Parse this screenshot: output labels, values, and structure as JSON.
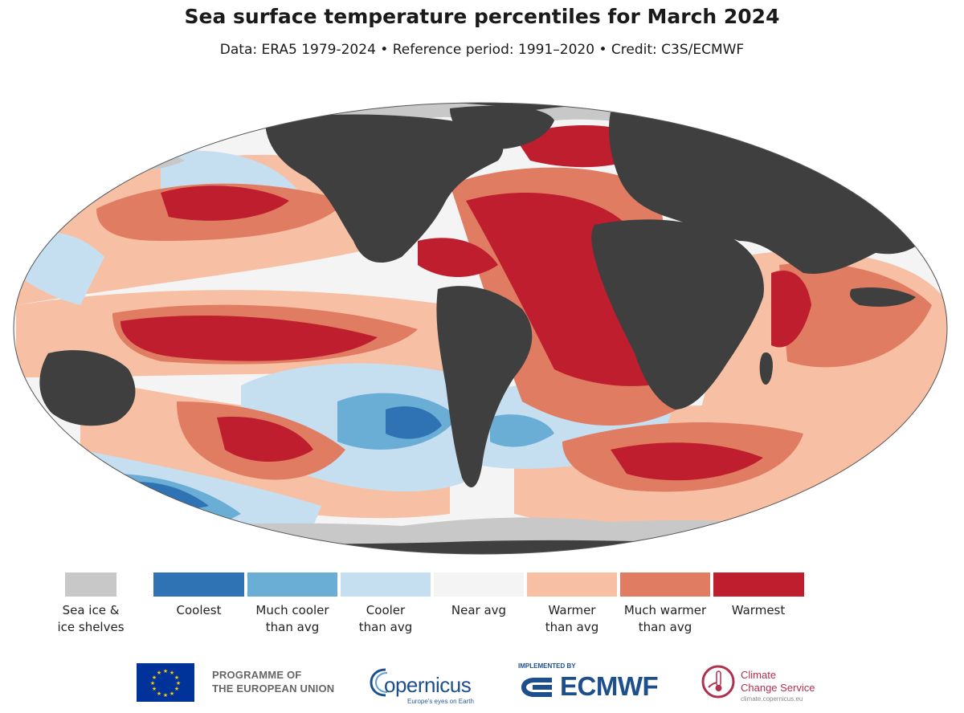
{
  "header": {
    "title": "Sea surface temperature percentiles for March 2024",
    "subtitle": "Data: ERA5 1979-2024 • Reference period: 1991–2020 • Credit: C3S/ECMWF"
  },
  "map": {
    "colors": {
      "land": "#3f3f3f",
      "ice": "#c8c8c8",
      "ocean_background": "#f7f7f7"
    }
  },
  "legend": {
    "ice": {
      "label_line1": "Sea ice &",
      "label_line2": "ice shelves",
      "color": "#c8c8c8"
    },
    "categories": [
      {
        "key": "coolest",
        "line1": "Coolest",
        "line2": "",
        "color": "#2f73b4"
      },
      {
        "key": "much-cooler",
        "line1": "Much cooler",
        "line2": "than avg",
        "color": "#6aaed6"
      },
      {
        "key": "cooler",
        "line1": "Cooler",
        "line2": "than avg",
        "color": "#c6dff0"
      },
      {
        "key": "near-avg",
        "line1": "Near avg",
        "line2": "",
        "color": "#f4f4f4"
      },
      {
        "key": "warmer",
        "line1": "Warmer",
        "line2": "than avg",
        "color": "#f7bfa4"
      },
      {
        "key": "much-warmer",
        "line1": "Much warmer",
        "line2": "than avg",
        "color": "#e07c62"
      },
      {
        "key": "warmest",
        "line1": "Warmest",
        "line2": "",
        "color": "#be1e2d"
      }
    ]
  },
  "footer": {
    "eu": {
      "line1": "PROGRAMME OF",
      "line2": "THE EUROPEAN UNION"
    },
    "copernicus": {
      "word": "opernicus",
      "tagline": "Europe's eyes on Earth"
    },
    "ecmwf": {
      "implemented_by": "IMPLEMENTED BY",
      "word": "ECMWF"
    },
    "c3s": {
      "line1": "Climate",
      "line2": "Change Service",
      "url": "climate.copernicus.eu"
    }
  }
}
